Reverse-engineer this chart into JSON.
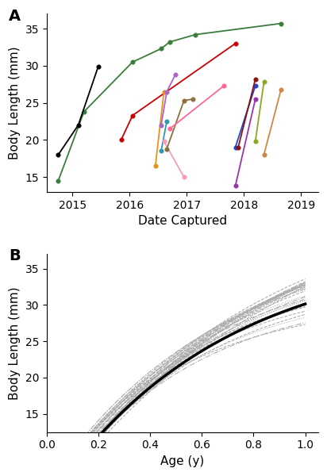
{
  "panel_A": {
    "label": "A",
    "xlabel": "Date Captured",
    "ylabel": "Body Length (mm)",
    "ylim": [
      13,
      37
    ],
    "yticks": [
      15,
      20,
      25,
      30,
      35
    ],
    "xticks": [
      2015,
      2016,
      2017,
      2018,
      2019
    ],
    "xlim": [
      2014.55,
      2019.3
    ],
    "series": [
      {
        "color": "#3a7d3a",
        "points": [
          [
            2014.75,
            14.5
          ],
          [
            2015.2,
            23.8
          ],
          [
            2016.05,
            30.5
          ],
          [
            2016.55,
            32.3
          ],
          [
            2016.7,
            33.2
          ],
          [
            2017.15,
            34.2
          ],
          [
            2018.65,
            35.7
          ]
        ]
      },
      {
        "color": "#000000",
        "points": [
          [
            2014.75,
            18.0
          ],
          [
            2015.1,
            22.0
          ],
          [
            2015.45,
            29.9
          ]
        ]
      },
      {
        "color": "#cc0000",
        "points": [
          [
            2015.85,
            20.0
          ],
          [
            2016.05,
            23.3
          ],
          [
            2017.85,
            33.0
          ]
        ]
      },
      {
        "color": "#e89020",
        "points": [
          [
            2016.45,
            16.5
          ],
          [
            2016.6,
            26.5
          ]
        ]
      },
      {
        "color": "#aa66cc",
        "points": [
          [
            2016.55,
            22.0
          ],
          [
            2016.65,
            26.5
          ],
          [
            2016.8,
            28.8
          ]
        ]
      },
      {
        "color": "#3399aa",
        "points": [
          [
            2016.55,
            18.5
          ],
          [
            2016.65,
            22.5
          ]
        ]
      },
      {
        "color": "#ff99bb",
        "points": [
          [
            2016.6,
            19.8
          ],
          [
            2016.95,
            15.0
          ]
        ]
      },
      {
        "color": "#8b7040",
        "points": [
          [
            2016.65,
            18.8
          ],
          [
            2016.95,
            25.3
          ],
          [
            2017.1,
            25.5
          ]
        ]
      },
      {
        "color": "#ff6699",
        "points": [
          [
            2016.7,
            21.5
          ],
          [
            2017.65,
            27.3
          ]
        ]
      },
      {
        "color": "#2244cc",
        "points": [
          [
            2017.85,
            19.0
          ],
          [
            2018.2,
            27.3
          ]
        ]
      },
      {
        "color": "#8b1111",
        "points": [
          [
            2017.9,
            19.0
          ],
          [
            2018.2,
            28.2
          ]
        ]
      },
      {
        "color": "#9933aa",
        "points": [
          [
            2017.85,
            13.8
          ],
          [
            2018.2,
            25.5
          ]
        ]
      },
      {
        "color": "#88aa22",
        "points": [
          [
            2018.2,
            19.8
          ],
          [
            2018.35,
            27.8
          ]
        ]
      },
      {
        "color": "#cc8844",
        "points": [
          [
            2018.35,
            18.0
          ],
          [
            2018.65,
            26.8
          ]
        ]
      }
    ]
  },
  "panel_B": {
    "label": "B",
    "xlabel": "Age (y)",
    "ylabel": "Body Length (mm)",
    "ylim": [
      12.5,
      37
    ],
    "yticks": [
      15,
      20,
      25,
      30,
      35
    ],
    "xlim": [
      0,
      1.05
    ],
    "xticks": [
      0,
      0.2,
      0.4,
      0.6,
      0.8,
      1.0
    ],
    "Linf_mean": 38.0,
    "K_mean": 1.5,
    "t0_mean": -0.05,
    "individual_curves": {
      "Linf_values": [
        42,
        44,
        46,
        48,
        50,
        40,
        38,
        36,
        34,
        32,
        43,
        45,
        47,
        39,
        37,
        35,
        41,
        49,
        33,
        31,
        44,
        46,
        38,
        36,
        42,
        48,
        40,
        34,
        43,
        37
      ],
      "K_values": [
        1.4,
        1.3,
        1.2,
        1.1,
        1.0,
        1.5,
        1.6,
        1.7,
        1.8,
        1.9,
        1.35,
        1.25,
        1.15,
        1.55,
        1.65,
        1.75,
        1.45,
        1.05,
        1.85,
        1.95,
        1.3,
        1.2,
        1.6,
        1.7,
        1.4,
        1.1,
        1.5,
        1.8,
        1.35,
        1.65
      ],
      "t0_values": [
        -0.08,
        -0.06,
        -0.04,
        -0.07,
        -0.05,
        -0.09,
        -0.03,
        -0.06,
        -0.08,
        -0.04,
        -0.07,
        -0.05,
        -0.09,
        -0.03,
        -0.06,
        -0.08,
        -0.04,
        -0.07,
        -0.05,
        -0.09,
        -0.03,
        -0.06,
        -0.08,
        -0.04,
        -0.07,
        -0.05,
        -0.09,
        -0.03,
        -0.06,
        -0.08
      ]
    },
    "curve_color": "#aaaaaa",
    "mean_color": "#000000",
    "mean_linewidth": 2.5
  }
}
